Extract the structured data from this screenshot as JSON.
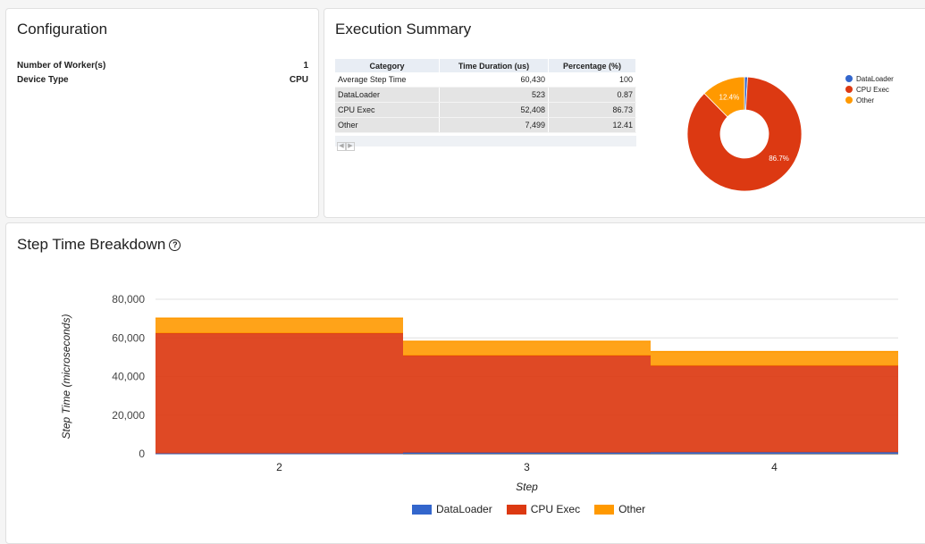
{
  "configuration": {
    "title": "Configuration",
    "rows": [
      {
        "label": "Number of Worker(s)",
        "value": "1"
      },
      {
        "label": "Device Type",
        "value": "CPU"
      }
    ]
  },
  "execution_summary": {
    "title": "Execution Summary",
    "table": {
      "headers": [
        "Category",
        "Time Duration (us)",
        "Percentage (%)"
      ],
      "rows": [
        [
          "Average Step Time",
          "60,430",
          "100"
        ],
        [
          "DataLoader",
          "523",
          "0.87"
        ],
        [
          "CPU Exec",
          "52,408",
          "86.73"
        ],
        [
          "Other",
          "7,499",
          "12.41"
        ]
      ],
      "pager_prev": "◀",
      "pager_next": "▶"
    },
    "pie": {
      "labels": [
        "DataLoader",
        "CPU Exec",
        "Other"
      ],
      "values": [
        0.87,
        86.73,
        12.41
      ],
      "slice_labels": [
        "",
        "86.7%",
        "12.4%"
      ],
      "colors": [
        "#3366cc",
        "#dc3912",
        "#ff9900"
      ]
    }
  },
  "step_time": {
    "title": "Step Time Breakdown",
    "help_icon": "?",
    "chart_data": {
      "type": "area",
      "title": "Step Time Breakdown",
      "xlabel": "Step",
      "ylabel": "Step Time (microseconds)",
      "categories": [
        "2",
        "3",
        "4"
      ],
      "ylim": [
        0,
        80000
      ],
      "yticks": [
        0,
        20000,
        40000,
        60000,
        80000
      ],
      "ytick_labels": [
        "0",
        "20,000",
        "40,000",
        "60,000",
        "80,000"
      ],
      "stacked": true,
      "stepped": true,
      "grid": true,
      "legend": "bottom",
      "series": [
        {
          "name": "DataLoader",
          "color": "#3366cc",
          "values": [
            200,
            600,
            770
          ]
        },
        {
          "name": "CPU Exec",
          "color": "#dc3912",
          "values": [
            62200,
            50200,
            44800
          ]
        },
        {
          "name": "Other",
          "color": "#ff9900",
          "values": [
            7800,
            7400,
            7300
          ]
        }
      ]
    }
  }
}
